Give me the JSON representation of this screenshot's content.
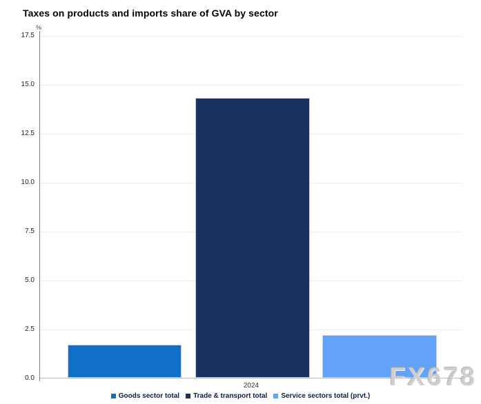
{
  "title": "Taxes on products and imports share of GVA by sector",
  "watermark": "FX678",
  "x_axis": {
    "category": "2024"
  },
  "y_axis": {
    "unit": "%"
  },
  "chart_data": {
    "type": "bar",
    "title": "Taxes on products and imports share of GVA by sector",
    "categories": [
      "2024"
    ],
    "series": [
      {
        "name": "Goods sector total",
        "values": [
          1.7
        ],
        "color": "#1070c8"
      },
      {
        "name": "Trade & transport total",
        "values": [
          14.3
        ],
        "color": "#1a3260"
      },
      {
        "name": "Service sectors total (prvt.)",
        "values": [
          2.2
        ],
        "color": "#62a3f7"
      }
    ],
    "xlabel": "",
    "ylabel": "%",
    "ylim": [
      0,
      17.5
    ],
    "yticks": [
      "0.0",
      "2.5",
      "5.0",
      "7.5",
      "10.0",
      "12.5",
      "15.0",
      "17.5"
    ],
    "grid": true,
    "legend_position": "bottom"
  }
}
